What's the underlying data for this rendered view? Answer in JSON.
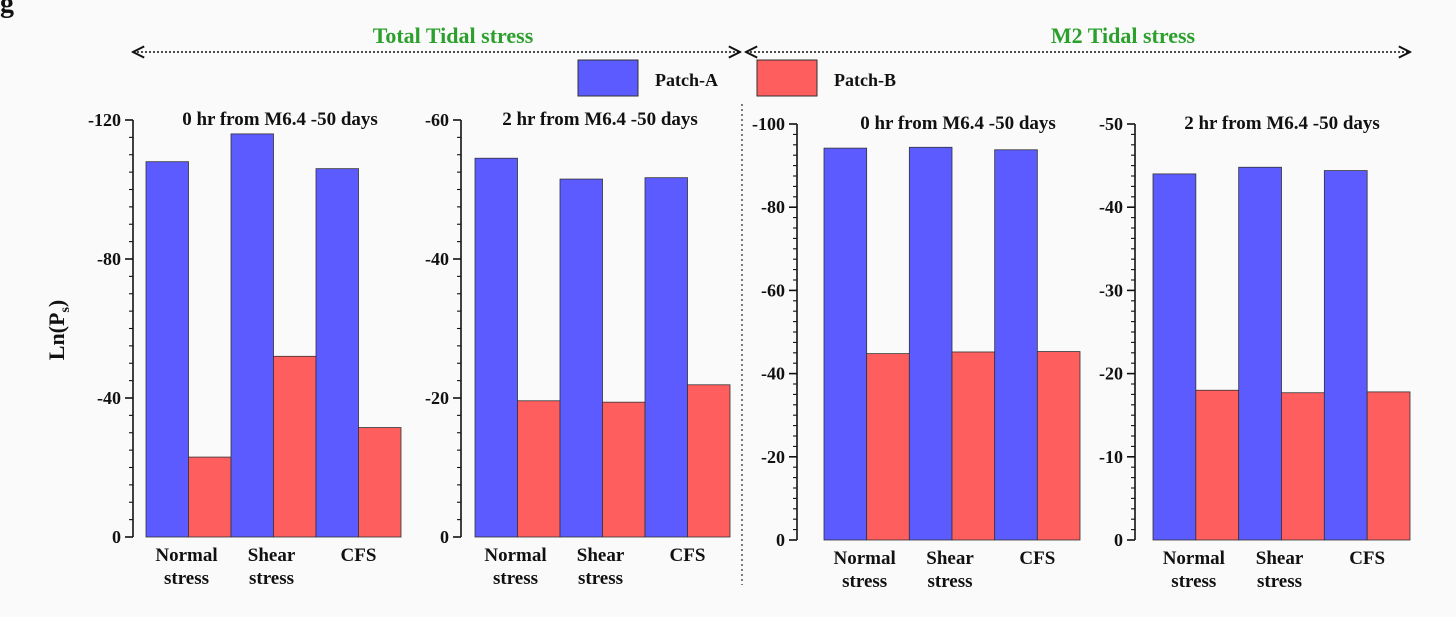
{
  "header": {
    "left_title": "Total Tidal stress",
    "right_title": "M2 Tidal stress",
    "corner_mark": "g"
  },
  "legend": {
    "items": [
      {
        "label": "Patch-A",
        "color": "#5b5bff"
      },
      {
        "label": "Patch-B",
        "color": "#ff5e5e"
      }
    ]
  },
  "y_axis_label": "Ln(P",
  "y_axis_label_sub": "s",
  "y_axis_label_end": ")",
  "chart_data": [
    {
      "type": "bar",
      "title": "0 hr from M6.4 -50 days",
      "categories": [
        [
          "Normal",
          "stress"
        ],
        [
          "Shear",
          "stress"
        ],
        [
          "CFS",
          ""
        ]
      ],
      "series": [
        {
          "name": "Patch-A",
          "values": [
            -108,
            -116,
            -106
          ]
        },
        {
          "name": "Patch-B",
          "values": [
            -23,
            -52,
            -31.5
          ]
        }
      ],
      "ylim": [
        0,
        -120
      ],
      "yticks": [
        0,
        -40,
        -80,
        -120
      ],
      "ytick_labels": [
        "0",
        "-40",
        "-80",
        "-120"
      ]
    },
    {
      "type": "bar",
      "title": "2 hr from M6.4 -50 days",
      "categories": [
        [
          "Normal",
          "stress"
        ],
        [
          "Shear",
          "stress"
        ],
        [
          "CFS",
          ""
        ]
      ],
      "series": [
        {
          "name": "Patch-A",
          "values": [
            -54.5,
            -51.5,
            -51.7
          ]
        },
        {
          "name": "Patch-B",
          "values": [
            -19.6,
            -19.4,
            -21.9
          ]
        }
      ],
      "ylim": [
        0,
        -60
      ],
      "yticks": [
        0,
        -20,
        -40,
        -60
      ],
      "ytick_labels": [
        "0",
        "-20",
        "-40",
        "-60"
      ]
    },
    {
      "type": "bar",
      "title": "0 hr from M6.4 -50 days",
      "categories": [
        [
          "Normal",
          "stress"
        ],
        [
          "Shear",
          "stress"
        ],
        [
          "CFS",
          ""
        ]
      ],
      "series": [
        {
          "name": "Patch-A",
          "values": [
            -94.2,
            -94.4,
            -93.8
          ]
        },
        {
          "name": "Patch-B",
          "values": [
            -44.8,
            -45.2,
            -45.3
          ]
        }
      ],
      "ylim": [
        0,
        -100
      ],
      "yticks": [
        0,
        -20,
        -40,
        -60,
        -80,
        -100
      ],
      "ytick_labels": [
        "0",
        "-20",
        "-40",
        "-60",
        "-80",
        "-100"
      ]
    },
    {
      "type": "bar",
      "title": "2 hr from M6.4 -50 days",
      "categories": [
        [
          "Normal",
          "stress"
        ],
        [
          "Shear",
          "stress"
        ],
        [
          "CFS",
          ""
        ]
      ],
      "series": [
        {
          "name": "Patch-A",
          "values": [
            -44,
            -44.8,
            -44.4
          ]
        },
        {
          "name": "Patch-B",
          "values": [
            -18,
            -17.7,
            -17.8
          ]
        }
      ],
      "ylim": [
        0,
        -50
      ],
      "yticks": [
        0,
        -10,
        -20,
        -30,
        -40,
        -50
      ],
      "ytick_labels": [
        "0",
        "-10",
        "-20",
        "-30",
        "-40",
        "-50"
      ]
    }
  ]
}
